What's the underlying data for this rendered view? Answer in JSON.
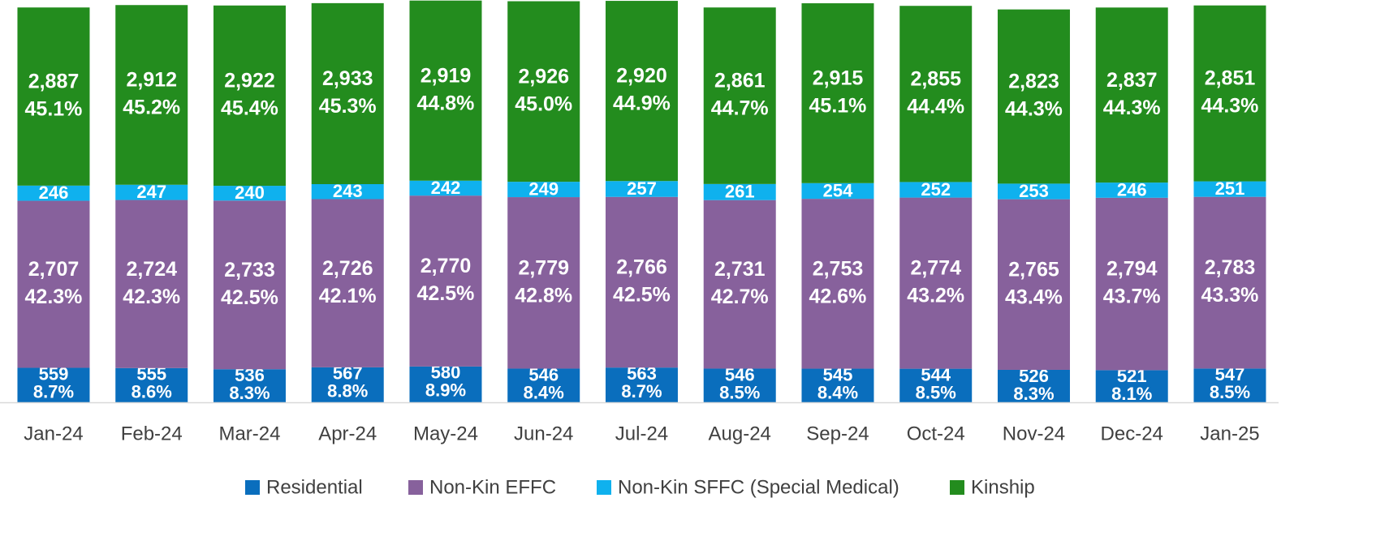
{
  "chart_data": {
    "type": "stacked-bar",
    "categories": [
      "Jan-24",
      "Feb-24",
      "Mar-24",
      "Apr-24",
      "May-24",
      "Jun-24",
      "Jul-24",
      "Aug-24",
      "Sep-24",
      "Oct-24",
      "Nov-24",
      "Dec-24",
      "Jan-25"
    ],
    "ylim": [
      0,
      6520
    ],
    "series": [
      {
        "name": "Residential",
        "color": "#0a6ebd",
        "values": [
          559,
          555,
          536,
          567,
          580,
          546,
          563,
          546,
          545,
          544,
          526,
          521,
          547
        ],
        "value_labels": [
          "559",
          "555",
          "536",
          "567",
          "580",
          "546",
          "563",
          "546",
          "545",
          "544",
          "526",
          "521",
          "547"
        ],
        "shares": [
          8.7,
          8.6,
          8.3,
          8.8,
          8.9,
          8.4,
          8.7,
          8.5,
          8.4,
          8.5,
          8.3,
          8.1,
          8.5
        ],
        "share_labels": [
          "8.7%",
          "8.6%",
          "8.3%",
          "8.8%",
          "8.9%",
          "8.4%",
          "8.7%",
          "8.5%",
          "8.4%",
          "8.5%",
          "8.3%",
          "8.1%",
          "8.5%"
        ]
      },
      {
        "name": "Non-Kin EFFC",
        "color": "#87619c",
        "values": [
          2707,
          2724,
          2733,
          2726,
          2770,
          2779,
          2766,
          2731,
          2753,
          2774,
          2765,
          2794,
          2783
        ],
        "value_labels": [
          "2,707",
          "2,724",
          "2,733",
          "2,726",
          "2,770",
          "2,779",
          "2,766",
          "2,731",
          "2,753",
          "2,774",
          "2,765",
          "2,794",
          "2,783"
        ],
        "shares": [
          42.3,
          42.3,
          42.5,
          42.1,
          42.5,
          42.8,
          42.5,
          42.7,
          42.6,
          43.2,
          43.4,
          43.7,
          43.3
        ],
        "share_labels": [
          "42.3%",
          "42.3%",
          "42.5%",
          "42.1%",
          "42.5%",
          "42.8%",
          "42.5%",
          "42.7%",
          "42.6%",
          "43.2%",
          "43.4%",
          "43.7%",
          "43.3%"
        ]
      },
      {
        "name": "Non-Kin SFFC (Special Medical)",
        "color": "#0fb1ee",
        "values": [
          246,
          247,
          240,
          243,
          242,
          249,
          257,
          261,
          254,
          252,
          253,
          246,
          251
        ]
      },
      {
        "name": "Kinship",
        "color": "#238c1e",
        "values": [
          2887,
          2912,
          2922,
          2933,
          2919,
          2926,
          2920,
          2861,
          2915,
          2855,
          2823,
          2837,
          2851
        ],
        "value_labels": [
          "2,887",
          "2,912",
          "2,922",
          "2,933",
          "2,919",
          "2,926",
          "2,920",
          "2,861",
          "2,915",
          "2,855",
          "2,823",
          "2,837",
          "2,851"
        ],
        "shares": [
          45.1,
          45.2,
          45.4,
          45.3,
          44.8,
          45,
          44.9,
          44.7,
          45.1,
          44.4,
          44.3,
          44.3,
          44.3
        ],
        "share_labels": [
          "45.1%",
          "45.2%",
          "45.4%",
          "45.3%",
          "44.8%",
          "45.0%",
          "44.9%",
          "44.7%",
          "45.1%",
          "44.4%",
          "44.3%",
          "44.3%",
          "44.3%"
        ]
      }
    ]
  }
}
